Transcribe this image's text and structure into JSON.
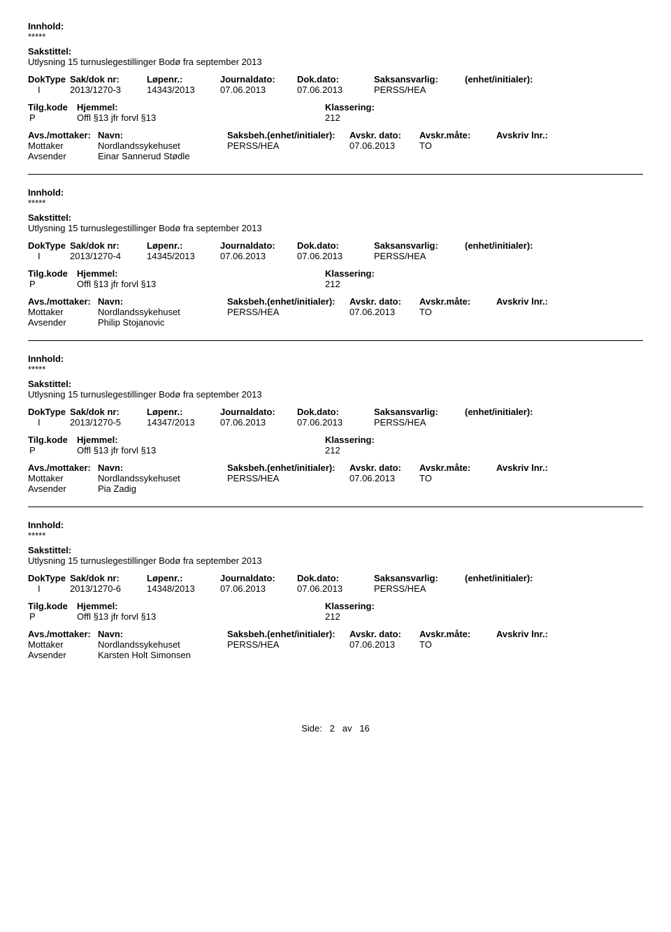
{
  "labels": {
    "innhold": "Innhold:",
    "sakstittel": "Sakstittel:",
    "doktype": "DokType",
    "sakdok": "Sak/dok nr:",
    "lopenr": "Løpenr.:",
    "journaldato": "Journaldato:",
    "dokdato": "Dok.dato:",
    "saksansvarlig": "Saksansvarlig:",
    "enhet": "(enhet/initialer):",
    "tilgkode": "Tilg.kode",
    "hjemmel": "Hjemmel:",
    "klassering": "Klassering:",
    "avsmot": "Avs./mottaker:",
    "navn": "Navn:",
    "saksbeh": "Saksbeh.(enhet/initialer):",
    "avskrdato": "Avskr. dato:",
    "avskrmate": "Avskr.måte:",
    "avskrivlnr": "Avskriv lnr.:",
    "mottaker": "Mottaker",
    "avsender": "Avsender"
  },
  "common": {
    "stars": "*****",
    "title": "Utlysning 15 turnuslegestillinger Bodø fra september 2013",
    "doktype": "I",
    "journaldato": "07.06.2013",
    "dokdato": "07.06.2013",
    "saksansv": "PERSS/HEA",
    "tilgkode": "P",
    "hjemmel": "Offl §13 jfr forvl §13",
    "klassering": "212",
    "mottaker_navn": "Nordlandssykehuset",
    "saksbeh": "PERSS/HEA",
    "avskrdato": "07.06.2013",
    "avskrmate": "TO"
  },
  "records": [
    {
      "sakdok": "2013/1270-3",
      "lopenr": "14343/2013",
      "avsender": "Einar Sannerud Stødle"
    },
    {
      "sakdok": "2013/1270-4",
      "lopenr": "14345/2013",
      "avsender": "Philip Stojanovic"
    },
    {
      "sakdok": "2013/1270-5",
      "lopenr": "14347/2013",
      "avsender": "Pia Zadig"
    },
    {
      "sakdok": "2013/1270-6",
      "lopenr": "14348/2013",
      "avsender": "Karsten Holt Simonsen"
    }
  ],
  "footer": {
    "side": "Side:",
    "page": "2",
    "av": "av",
    "total": "16"
  }
}
